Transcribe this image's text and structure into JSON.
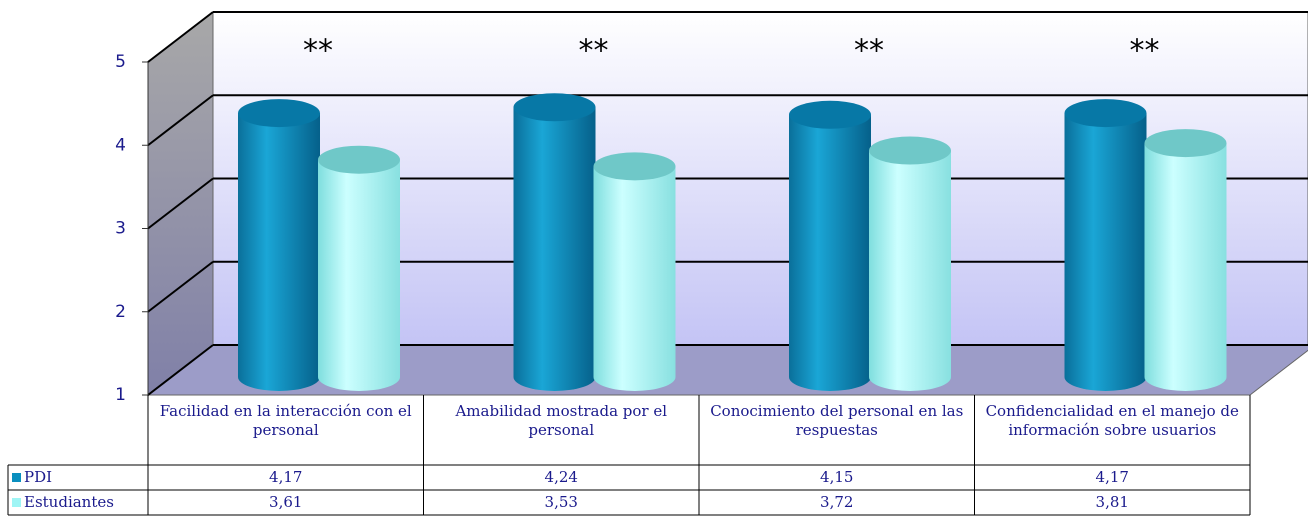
{
  "chart_data": {
    "type": "bar",
    "categories": [
      "Facilidad en la interacción con el personal",
      "Amabilidad mostrada por el personal",
      "Conocimiento del personal en las respuestas",
      "Confidencialidad en el manejo de información sobre usuarios"
    ],
    "series": [
      {
        "name": "PDI",
        "color": "#0a8fbf",
        "values": [
          4.17,
          4.24,
          4.15,
          4.17
        ],
        "value_labels": [
          "4,17",
          "4,24",
          "4,15",
          "4,17"
        ]
      },
      {
        "name": "Estudiantes",
        "color": "#9ff5f5",
        "values": [
          3.61,
          3.53,
          3.72,
          3.81
        ],
        "value_labels": [
          "3,61",
          "3,53",
          "3,72",
          "3,81"
        ]
      }
    ],
    "annotations": [
      "**",
      "**",
      "**",
      "**"
    ],
    "ylim": [
      1,
      5
    ],
    "yticks": [
      1,
      2,
      3,
      4,
      5
    ],
    "grid": true
  }
}
